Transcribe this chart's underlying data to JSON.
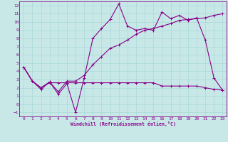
{
  "xlabel": "Windchill (Refroidissement éolien,°C)",
  "xlim": [
    -0.5,
    23.5
  ],
  "ylim": [
    -1.5,
    12.5
  ],
  "xticks": [
    0,
    1,
    2,
    3,
    4,
    5,
    6,
    7,
    8,
    9,
    10,
    11,
    12,
    13,
    14,
    15,
    16,
    17,
    18,
    19,
    20,
    21,
    22,
    23
  ],
  "yticks": [
    -1,
    0,
    1,
    2,
    3,
    4,
    5,
    6,
    7,
    8,
    9,
    10,
    11,
    12
  ],
  "bg_color": "#c8e8e8",
  "line_color": "#880088",
  "grid_color": "#aad8d8",
  "line1_x": [
    0,
    1,
    2,
    3,
    4,
    5,
    6,
    7,
    8,
    9,
    10,
    11,
    12,
    13,
    14,
    15,
    16,
    17,
    18,
    19,
    20,
    21,
    22,
    23
  ],
  "line1_y": [
    4.5,
    2.8,
    1.8,
    2.7,
    1.2,
    2.5,
    -1.0,
    3.2,
    8.0,
    9.2,
    10.3,
    12.2,
    9.5,
    9.0,
    9.2,
    9.0,
    11.2,
    10.4,
    10.8,
    10.2,
    10.5,
    7.8,
    3.2,
    1.7
  ],
  "line2_x": [
    0,
    1,
    2,
    3,
    4,
    5,
    6,
    7,
    8,
    9,
    10,
    11,
    12,
    13,
    14,
    15,
    16,
    17,
    18,
    19,
    20,
    21,
    22,
    23
  ],
  "line2_y": [
    4.5,
    2.8,
    2.0,
    2.7,
    1.5,
    2.8,
    2.8,
    3.5,
    4.8,
    5.8,
    6.8,
    7.2,
    7.8,
    8.5,
    9.0,
    9.2,
    9.5,
    9.8,
    10.2,
    10.3,
    10.4,
    10.5,
    10.8,
    11.0
  ],
  "line3_x": [
    0,
    1,
    2,
    3,
    4,
    5,
    6,
    7,
    8,
    9,
    10,
    11,
    12,
    13,
    14,
    15,
    16,
    17,
    18,
    19,
    20,
    21,
    22,
    23
  ],
  "line3_y": [
    4.5,
    2.8,
    2.0,
    2.6,
    2.6,
    2.6,
    2.6,
    2.6,
    2.6,
    2.6,
    2.6,
    2.6,
    2.6,
    2.6,
    2.6,
    2.6,
    2.2,
    2.2,
    2.2,
    2.2,
    2.2,
    2.0,
    1.8,
    1.7
  ]
}
